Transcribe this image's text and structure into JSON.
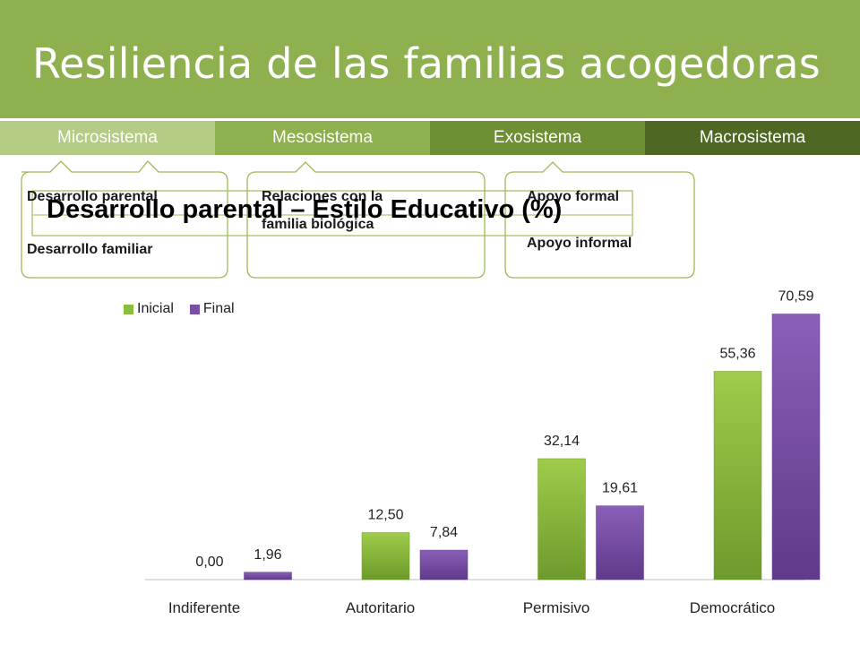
{
  "header": {
    "title": "Resiliencia de las familias acogedoras"
  },
  "tabs": [
    {
      "label": "Microsistema",
      "color": "#b4cc84"
    },
    {
      "label": "Mesosistema",
      "color": "#8eb04e"
    },
    {
      "label": "Exosistema",
      "color": "#6e8f34"
    },
    {
      "label": "Macrosistema",
      "color": "#4e6824"
    }
  ],
  "callouts": {
    "micro": {
      "line1": "Desarrollo parental",
      "line2": "Desarrollo familiar"
    },
    "meso": {
      "line1": "Relaciones con la",
      "line2": "familia biológica"
    },
    "exo": {
      "line1": "Apoyo formal",
      "line2": "Apoyo informal"
    }
  },
  "chart_data": {
    "type": "bar",
    "title": "Desarrollo parental – Estilo Educativo (%)",
    "categories": [
      "Indiferente",
      "Autoritario",
      "Permisivo",
      "Democrático"
    ],
    "series": [
      {
        "name": "Inicial",
        "color": "#8cbc3c",
        "values": [
          0.0,
          12.5,
          32.14,
          55.36
        ],
        "labels": [
          "0,00",
          "12,50",
          "32,14",
          "55,36"
        ]
      },
      {
        "name": "Final",
        "color": "#7a50a6",
        "values": [
          1.96,
          7.84,
          19.61,
          70.59
        ],
        "labels": [
          "1,96",
          "7,84",
          "19,61",
          "70,59"
        ]
      }
    ],
    "ylim": [
      0,
      75
    ],
    "legend": "top-left",
    "grid": false
  }
}
